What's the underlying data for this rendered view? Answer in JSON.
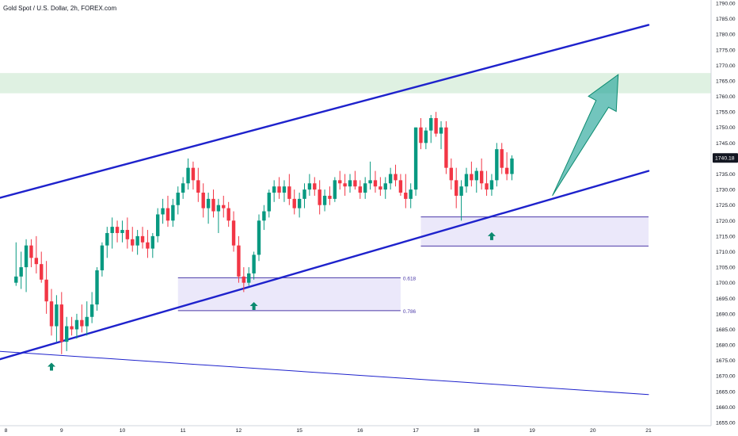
{
  "header": {
    "title": "Gold Spot / U.S. Dollar, 2h, FOREX.com"
  },
  "colors": {
    "bull": "#089981",
    "bear": "#f23645",
    "channel": "#1e22cc",
    "zone_fill": "#ebe8fa",
    "zone_border": "#4b3aa8",
    "target_fill": "#dff1e2",
    "arrow": "#26a69a",
    "marker": "#0b8a6f",
    "price_tag": "#131722"
  },
  "chart_data": {
    "type": "candlestick",
    "symbol": "Gold Spot / U.S. Dollar",
    "timeframe": "2h",
    "source": "FOREX.com",
    "ylim": [
      1655,
      1790
    ],
    "y_ticks": [
      1655,
      1660,
      1665,
      1670,
      1675,
      1680,
      1685,
      1690,
      1695,
      1700,
      1705,
      1710,
      1715,
      1720,
      1725,
      1730,
      1735,
      1740,
      1745,
      1750,
      1755,
      1760,
      1765,
      1770,
      1775,
      1780,
      1785,
      1790
    ],
    "x_ticks": [
      {
        "label": "8",
        "bar": 0
      },
      {
        "label": "9",
        "bar": 11
      },
      {
        "label": "10",
        "bar": 23
      },
      {
        "label": "11",
        "bar": 35
      },
      {
        "label": "12",
        "bar": 46
      },
      {
        "label": "15",
        "bar": 58
      },
      {
        "label": "16",
        "bar": 70
      },
      {
        "label": "17",
        "bar": 81
      },
      {
        "label": "18",
        "bar": 93
      },
      {
        "label": "19",
        "bar": 104
      },
      {
        "label": "20",
        "bar": 116
      },
      {
        "label": "21",
        "bar": 127
      }
    ],
    "last_price": "1740.18",
    "ohlc": [
      [
        1700,
        1713,
        1699,
        1702
      ],
      [
        1702,
        1710,
        1698,
        1705
      ],
      [
        1705,
        1714,
        1697,
        1712
      ],
      [
        1712,
        1714,
        1705,
        1708
      ],
      [
        1708,
        1715,
        1703,
        1706
      ],
      [
        1706,
        1710,
        1700,
        1701
      ],
      [
        1701,
        1707,
        1690,
        1694
      ],
      [
        1694,
        1698,
        1683,
        1686
      ],
      [
        1686,
        1696,
        1681,
        1693
      ],
      [
        1693,
        1697,
        1677,
        1681
      ],
      [
        1681,
        1689,
        1678,
        1686
      ],
      [
        1686,
        1689,
        1683,
        1685
      ],
      [
        1685,
        1690,
        1682,
        1688
      ],
      [
        1688,
        1693,
        1684,
        1686
      ],
      [
        1686,
        1694,
        1683,
        1689
      ],
      [
        1689,
        1697,
        1687,
        1693
      ],
      [
        1693,
        1705,
        1691,
        1704
      ],
      [
        1704,
        1713,
        1702,
        1712
      ],
      [
        1712,
        1718,
        1708,
        1716
      ],
      [
        1716,
        1721,
        1711,
        1718
      ],
      [
        1718,
        1720,
        1713,
        1716
      ],
      [
        1716,
        1720,
        1713,
        1717
      ],
      [
        1717,
        1721,
        1711,
        1714
      ],
      [
        1714,
        1718,
        1710,
        1712
      ],
      [
        1712,
        1717,
        1709,
        1715
      ],
      [
        1715,
        1718,
        1711,
        1713
      ],
      [
        1713,
        1717,
        1708,
        1711
      ],
      [
        1711,
        1716,
        1708,
        1715
      ],
      [
        1715,
        1724,
        1713,
        1722
      ],
      [
        1722,
        1727,
        1719,
        1724
      ],
      [
        1724,
        1728,
        1718,
        1720
      ],
      [
        1720,
        1727,
        1718,
        1725
      ],
      [
        1725,
        1731,
        1722,
        1729
      ],
      [
        1729,
        1734,
        1727,
        1732
      ],
      [
        1732,
        1740,
        1730,
        1737
      ],
      [
        1737,
        1739,
        1730,
        1733
      ],
      [
        1733,
        1737,
        1726,
        1729
      ],
      [
        1729,
        1732,
        1721,
        1724
      ],
      [
        1724,
        1729,
        1719,
        1727
      ],
      [
        1727,
        1730,
        1721,
        1723
      ],
      [
        1723,
        1727,
        1716,
        1725
      ],
      [
        1725,
        1728,
        1721,
        1724
      ],
      [
        1724,
        1726,
        1718,
        1720
      ],
      [
        1720,
        1723,
        1710,
        1712
      ],
      [
        1712,
        1715,
        1700,
        1702
      ],
      [
        1702,
        1705,
        1697,
        1700
      ],
      [
        1700,
        1705,
        1699,
        1703
      ],
      [
        1703,
        1710,
        1701,
        1709
      ],
      [
        1709,
        1722,
        1707,
        1720
      ],
      [
        1720,
        1725,
        1717,
        1723
      ],
      [
        1723,
        1730,
        1721,
        1729
      ],
      [
        1729,
        1733,
        1726,
        1731
      ],
      [
        1731,
        1734,
        1727,
        1729
      ],
      [
        1729,
        1733,
        1726,
        1731
      ],
      [
        1731,
        1735,
        1725,
        1727
      ],
      [
        1727,
        1730,
        1722,
        1724
      ],
      [
        1724,
        1729,
        1721,
        1727
      ],
      [
        1727,
        1732,
        1724,
        1730
      ],
      [
        1730,
        1735,
        1728,
        1732
      ],
      [
        1732,
        1734,
        1728,
        1730
      ],
      [
        1730,
        1733,
        1722,
        1725
      ],
      [
        1725,
        1730,
        1723,
        1728
      ],
      [
        1728,
        1731,
        1725,
        1727
      ],
      [
        1727,
        1734,
        1726,
        1733
      ],
      [
        1733,
        1736,
        1730,
        1732
      ],
      [
        1732,
        1735,
        1728,
        1731
      ],
      [
        1731,
        1735,
        1729,
        1733
      ],
      [
        1733,
        1736,
        1730,
        1731
      ],
      [
        1731,
        1733,
        1727,
        1729
      ],
      [
        1729,
        1734,
        1727,
        1732
      ],
      [
        1732,
        1739,
        1730,
        1733
      ],
      [
        1733,
        1736,
        1729,
        1731
      ],
      [
        1731,
        1734,
        1728,
        1730
      ],
      [
        1730,
        1734,
        1727,
        1732
      ],
      [
        1732,
        1737,
        1730,
        1735
      ],
      [
        1735,
        1738,
        1731,
        1733
      ],
      [
        1733,
        1735,
        1728,
        1729
      ],
      [
        1729,
        1735,
        1724,
        1727
      ],
      [
        1727,
        1732,
        1724,
        1730
      ],
      [
        1730,
        1750,
        1728,
        1750
      ],
      [
        1750,
        1753,
        1743,
        1745
      ],
      [
        1745,
        1750,
        1743,
        1749
      ],
      [
        1749,
        1754,
        1745,
        1753
      ],
      [
        1753,
        1755,
        1747,
        1748
      ],
      [
        1748,
        1752,
        1743,
        1750
      ],
      [
        1750,
        1752,
        1735,
        1737
      ],
      [
        1737,
        1740,
        1730,
        1733
      ],
      [
        1733,
        1737,
        1724,
        1728
      ],
      [
        1728,
        1733,
        1720,
        1731
      ],
      [
        1731,
        1737,
        1729,
        1735
      ],
      [
        1735,
        1739,
        1731,
        1733
      ],
      [
        1733,
        1737,
        1729,
        1736
      ],
      [
        1736,
        1740,
        1730,
        1732
      ],
      [
        1732,
        1736,
        1728,
        1730
      ],
      [
        1730,
        1735,
        1728,
        1733
      ],
      [
        1733,
        1745,
        1731,
        1743
      ],
      [
        1743,
        1745,
        1735,
        1737
      ],
      [
        1737,
        1742,
        1733,
        1735
      ],
      [
        1735,
        1741,
        1733,
        1740
      ]
    ],
    "bar_shift": 2,
    "lines": [
      {
        "name": "upper-channel",
        "from": [
          -2,
          1727
        ],
        "to": [
          127,
          1783
        ]
      },
      {
        "name": "lower-channel",
        "from": [
          -2,
          1675
        ],
        "to": [
          127,
          1736
        ]
      },
      {
        "name": "base-line",
        "from": [
          -2,
          1678
        ],
        "to": [
          127,
          1664
        ]
      }
    ],
    "zones": [
      {
        "name": "target-zone",
        "y_top": 1767.5,
        "y_bottom": 1761
      },
      {
        "name": "fib-zone",
        "bar_from": 34,
        "bar_to": 78,
        "y_top": 1701.6,
        "y_bottom": 1691,
        "top_label": "0.618",
        "bottom_label": "0.786"
      },
      {
        "name": "support-zone",
        "bar_from": 82,
        "bar_to": 127,
        "y_top": 1721.2,
        "y_bottom": 1711.8
      }
    ],
    "markers": [
      {
        "name": "up-marker-1",
        "bar": 9,
        "y": 1673
      },
      {
        "name": "up-marker-2",
        "bar": 49,
        "y": 1692.5
      },
      {
        "name": "up-marker-3",
        "bar": 96,
        "y": 1715
      }
    ],
    "projection": {
      "from": [
        108,
        1728
      ],
      "to": [
        121,
        1767
      ]
    }
  }
}
